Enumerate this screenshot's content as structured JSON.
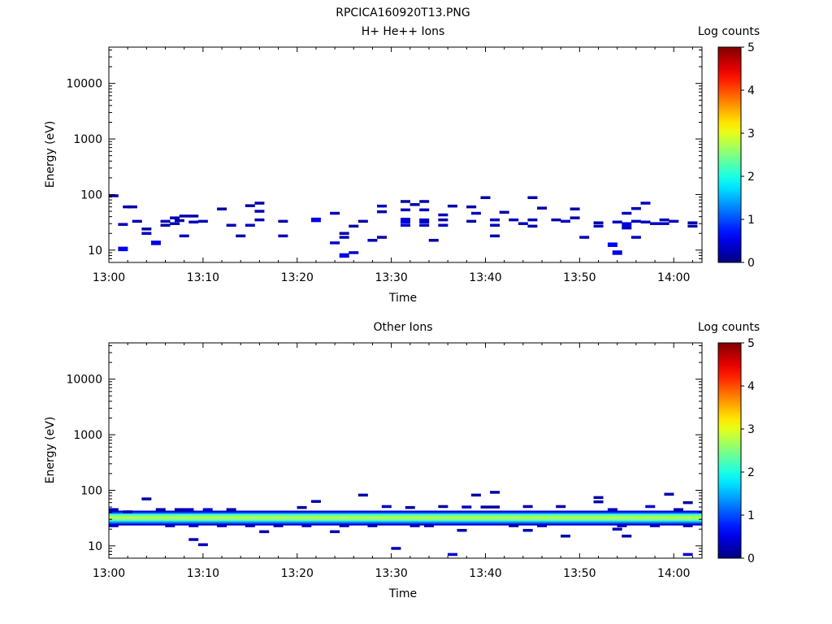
{
  "figure": {
    "title": "RPCICA160920T13.PNG"
  },
  "colorbar": {
    "label": "Log counts",
    "range": [
      0,
      5
    ],
    "ticks": [
      "0",
      "1",
      "2",
      "3",
      "4",
      "5"
    ],
    "colormap": "jet"
  },
  "chart_data": [
    {
      "type": "heatmap",
      "title": "H+ He++ Ions",
      "xlabel": "Time",
      "ylabel": "Energy (eV)",
      "y_scale": "log",
      "xlim": [
        "13:00",
        "14:03"
      ],
      "ylim": [
        6,
        45000
      ],
      "x_ticks": [
        "13:00",
        "13:10",
        "13:20",
        "13:30",
        "13:40",
        "13:50",
        "14:00"
      ],
      "y_ticks": [
        "10",
        "100",
        "1000",
        "10000"
      ],
      "colorbar_label": "Log counts",
      "value_range": [
        0,
        5
      ],
      "cells": [
        {
          "t": "13:00.5",
          "e": 95,
          "v": 0.2
        },
        {
          "t": "13:01.5",
          "e": 29,
          "v": 0.3
        },
        {
          "t": "13:02.0",
          "e": 60,
          "v": 0.2
        },
        {
          "t": "13:02.5",
          "e": 60,
          "v": 0.2
        },
        {
          "t": "13:01.5",
          "e": 10.5,
          "v": 0.6
        },
        {
          "t": "13:03.0",
          "e": 33,
          "v": 0.2
        },
        {
          "t": "13:04.0",
          "e": 24,
          "v": 0.2
        },
        {
          "t": "13:04.0",
          "e": 20,
          "v": 0.3
        },
        {
          "t": "13:05.0",
          "e": 13.5,
          "v": 0.5
        },
        {
          "t": "13:06.0",
          "e": 33,
          "v": 0.3
        },
        {
          "t": "13:06.0",
          "e": 28,
          "v": 0.2
        },
        {
          "t": "13:07.0",
          "e": 38,
          "v": 0.2
        },
        {
          "t": "13:07.0",
          "e": 30,
          "v": 0.3
        },
        {
          "t": "13:07.5",
          "e": 34,
          "v": 0.2
        },
        {
          "t": "13:08.0",
          "e": 41,
          "v": 0.2
        },
        {
          "t": "13:08.0",
          "e": 18,
          "v": 0.3
        },
        {
          "t": "13:09.0",
          "e": 41,
          "v": 0.2
        },
        {
          "t": "13:09.0",
          "e": 32,
          "v": 0.3
        },
        {
          "t": "13:10.0",
          "e": 33,
          "v": 0.3
        },
        {
          "t": "13:12.0",
          "e": 55,
          "v": 0.2
        },
        {
          "t": "13:13.0",
          "e": 28,
          "v": 0.3
        },
        {
          "t": "13:14.0",
          "e": 18,
          "v": 0.2
        },
        {
          "t": "13:15.0",
          "e": 63,
          "v": 0.2
        },
        {
          "t": "13:15.0",
          "e": 28,
          "v": 0.3
        },
        {
          "t": "13:16.0",
          "e": 70,
          "v": 0.2
        },
        {
          "t": "13:16.0",
          "e": 50,
          "v": 0.3
        },
        {
          "t": "13:16.0",
          "e": 35,
          "v": 0.3
        },
        {
          "t": "13:18.5",
          "e": 33,
          "v": 0.2
        },
        {
          "t": "13:18.5",
          "e": 18,
          "v": 0.3
        },
        {
          "t": "13:22.0",
          "e": 35,
          "v": 0.5
        },
        {
          "t": "13:24.0",
          "e": 46,
          "v": 0.3
        },
        {
          "t": "13:24.0",
          "e": 13.5,
          "v": 0.4
        },
        {
          "t": "13:25.0",
          "e": 20,
          "v": 0.2
        },
        {
          "t": "13:25.0",
          "e": 17,
          "v": 0.3
        },
        {
          "t": "13:25.0",
          "e": 8,
          "v": 0.5
        },
        {
          "t": "13:26.0",
          "e": 27,
          "v": 0.2
        },
        {
          "t": "13:26.0",
          "e": 9,
          "v": 0.4
        },
        {
          "t": "13:27.0",
          "e": 33,
          "v": 0.2
        },
        {
          "t": "13:28.0",
          "e": 15,
          "v": 0.3
        },
        {
          "t": "13:29.0",
          "e": 62,
          "v": 0.3
        },
        {
          "t": "13:29.0",
          "e": 49,
          "v": 0.2
        },
        {
          "t": "13:29.0",
          "e": 17,
          "v": 0.2
        },
        {
          "t": "13:31.5",
          "e": 75,
          "v": 0.2
        },
        {
          "t": "13:31.5",
          "e": 53,
          "v": 0.3
        },
        {
          "t": "13:31.5",
          "e": 36,
          "v": 0.4
        },
        {
          "t": "13:31.5",
          "e": 33,
          "v": 0.5
        },
        {
          "t": "13:31.5",
          "e": 28,
          "v": 0.4
        },
        {
          "t": "13:32.5",
          "e": 66,
          "v": 0.2
        },
        {
          "t": "13:33.5",
          "e": 75,
          "v": 0.2
        },
        {
          "t": "13:33.5",
          "e": 53,
          "v": 0.3
        },
        {
          "t": "13:33.5",
          "e": 35,
          "v": 0.3
        },
        {
          "t": "13:33.5",
          "e": 32,
          "v": 0.4
        },
        {
          "t": "13:33.5",
          "e": 28,
          "v": 0.3
        },
        {
          "t": "13:34.5",
          "e": 15,
          "v": 0.2
        },
        {
          "t": "13:35.5",
          "e": 43,
          "v": 0.3
        },
        {
          "t": "13:35.5",
          "e": 35,
          "v": 0.2
        },
        {
          "t": "13:35.5",
          "e": 28,
          "v": 0.3
        },
        {
          "t": "13:36.5",
          "e": 62,
          "v": 0.2
        },
        {
          "t": "13:38.5",
          "e": 33,
          "v": 0.2
        },
        {
          "t": "13:38.5",
          "e": 60,
          "v": 0.2
        },
        {
          "t": "13:39.0",
          "e": 46,
          "v": 0.3
        },
        {
          "t": "13:40.0",
          "e": 88,
          "v": 0.2
        },
        {
          "t": "13:41.0",
          "e": 35,
          "v": 0.3
        },
        {
          "t": "13:41.0",
          "e": 28,
          "v": 0.3
        },
        {
          "t": "13:41.0",
          "e": 18,
          "v": 0.2
        },
        {
          "t": "13:42.0",
          "e": 48,
          "v": 0.2
        },
        {
          "t": "13:43.0",
          "e": 35,
          "v": 0.3
        },
        {
          "t": "13:44.0",
          "e": 30,
          "v": 0.3
        },
        {
          "t": "13:45.0",
          "e": 88,
          "v": 0.2
        },
        {
          "t": "13:45.0",
          "e": 35,
          "v": 0.3
        },
        {
          "t": "13:45.0",
          "e": 27,
          "v": 0.2
        },
        {
          "t": "13:46.0",
          "e": 57,
          "v": 0.2
        },
        {
          "t": "13:47.5",
          "e": 35,
          "v": 0.2
        },
        {
          "t": "13:48.5",
          "e": 33,
          "v": 0.3
        },
        {
          "t": "13:49.5",
          "e": 55,
          "v": 0.2
        },
        {
          "t": "13:49.5",
          "e": 38,
          "v": 0.2
        },
        {
          "t": "13:50.5",
          "e": 17,
          "v": 0.3
        },
        {
          "t": "13:52.0",
          "e": 31,
          "v": 0.2
        },
        {
          "t": "13:52.0",
          "e": 27,
          "v": 0.3
        },
        {
          "t": "13:53.5",
          "e": 12.5,
          "v": 0.6
        },
        {
          "t": "13:54.0",
          "e": 32,
          "v": 0.3
        },
        {
          "t": "13:54.0",
          "e": 9,
          "v": 0.5
        },
        {
          "t": "13:55.0",
          "e": 46,
          "v": 0.3
        },
        {
          "t": "13:55.0",
          "e": 29,
          "v": 0.5
        },
        {
          "t": "13:55.0",
          "e": 25,
          "v": 0.3
        },
        {
          "t": "13:56.0",
          "e": 56,
          "v": 0.3
        },
        {
          "t": "13:56.0",
          "e": 33,
          "v": 0.3
        },
        {
          "t": "13:56.0",
          "e": 17,
          "v": 0.3
        },
        {
          "t": "13:57.0",
          "e": 70,
          "v": 0.3
        },
        {
          "t": "13:57.0",
          "e": 32,
          "v": 0.3
        },
        {
          "t": "13:58.0",
          "e": 30,
          "v": 0.3
        },
        {
          "t": "13:59.0",
          "e": 35,
          "v": 0.3
        },
        {
          "t": "13:59.0",
          "e": 30,
          "v": 0.3
        },
        {
          "t": "14:00.0",
          "e": 33,
          "v": 0.3
        },
        {
          "t": "14:02.0",
          "e": 31,
          "v": 0.2
        },
        {
          "t": "14:02.0",
          "e": 27,
          "v": 0.2
        }
      ]
    },
    {
      "type": "heatmap",
      "title": "Other Ions",
      "xlabel": "Time",
      "ylabel": "Energy (eV)",
      "y_scale": "log",
      "xlim": [
        "13:00",
        "14:03"
      ],
      "ylim": [
        6,
        45000
      ],
      "x_ticks": [
        "13:00",
        "13:10",
        "13:20",
        "13:30",
        "13:40",
        "13:50",
        "14:00"
      ],
      "y_ticks": [
        "10",
        "100",
        "1000",
        "10000"
      ],
      "colorbar_label": "Log counts",
      "value_range": [
        0,
        5
      ],
      "band": {
        "t_start": "13:00",
        "t_end": "14:03",
        "profile": [
          {
            "e": 41,
            "v": 0.4
          },
          {
            "e": 39,
            "v": 1.0
          },
          {
            "e": 37,
            "v": 1.8
          },
          {
            "e": 35,
            "v": 2.4
          },
          {
            "e": 33,
            "v": 2.8
          },
          {
            "e": 31,
            "v": 2.7
          },
          {
            "e": 29,
            "v": 2.3
          },
          {
            "e": 27.5,
            "v": 1.7
          },
          {
            "e": 26,
            "v": 1.1
          },
          {
            "e": 24.5,
            "v": 0.4
          }
        ]
      },
      "cells": [
        {
          "t": "13:00.5",
          "e": 45,
          "v": 0.2
        },
        {
          "t": "13:00.5",
          "e": 23,
          "v": 0.4
        },
        {
          "t": "13:02.0",
          "e": 41,
          "v": 0.3
        },
        {
          "t": "13:04.0",
          "e": 70,
          "v": 0.2
        },
        {
          "t": "13:05.5",
          "e": 45,
          "v": 0.2
        },
        {
          "t": "13:07.5",
          "e": 45,
          "v": 0.2
        },
        {
          "t": "13:06.5",
          "e": 23,
          "v": 0.3
        },
        {
          "t": "13:08.5",
          "e": 45,
          "v": 0.3
        },
        {
          "t": "13:09.0",
          "e": 23,
          "v": 0.4
        },
        {
          "t": "13:09.0",
          "e": 13,
          "v": 0.3
        },
        {
          "t": "13:10.0",
          "e": 10.5,
          "v": 0.3
        },
        {
          "t": "13:10.5",
          "e": 45,
          "v": 0.4
        },
        {
          "t": "13:12.0",
          "e": 23,
          "v": 0.3
        },
        {
          "t": "13:13.0",
          "e": 45,
          "v": 0.2
        },
        {
          "t": "13:15.0",
          "e": 23,
          "v": 0.3
        },
        {
          "t": "13:16.5",
          "e": 18,
          "v": 0.2
        },
        {
          "t": "13:18.0",
          "e": 23,
          "v": 0.3
        },
        {
          "t": "13:20.5",
          "e": 49,
          "v": 0.2
        },
        {
          "t": "13:22.0",
          "e": 63,
          "v": 0.2
        },
        {
          "t": "13:21.0",
          "e": 23,
          "v": 0.3
        },
        {
          "t": "13:24.0",
          "e": 18,
          "v": 0.2
        },
        {
          "t": "13:25.0",
          "e": 23,
          "v": 0.3
        },
        {
          "t": "13:27.0",
          "e": 82,
          "v": 0.2
        },
        {
          "t": "13:28.0",
          "e": 23,
          "v": 0.3
        },
        {
          "t": "13:29.5",
          "e": 51,
          "v": 0.3
        },
        {
          "t": "13:30.5",
          "e": 9,
          "v": 0.3
        },
        {
          "t": "13:32.0",
          "e": 49,
          "v": 0.2
        },
        {
          "t": "13:32.5",
          "e": 23,
          "v": 0.3
        },
        {
          "t": "13:34.0",
          "e": 23,
          "v": 0.3
        },
        {
          "t": "13:35.5",
          "e": 51,
          "v": 0.2
        },
        {
          "t": "13:36.5",
          "e": 7,
          "v": 0.4
        },
        {
          "t": "13:38.0",
          "e": 50,
          "v": 0.3
        },
        {
          "t": "13:37.5",
          "e": 19,
          "v": 0.2
        },
        {
          "t": "13:39.0",
          "e": 82,
          "v": 0.2
        },
        {
          "t": "13:40.0",
          "e": 50,
          "v": 0.2
        },
        {
          "t": "13:41.0",
          "e": 50,
          "v": 0.2
        },
        {
          "t": "13:41.0",
          "e": 92,
          "v": 0.2
        },
        {
          "t": "13:43.0",
          "e": 23,
          "v": 0.2
        },
        {
          "t": "13:44.5",
          "e": 51,
          "v": 0.2
        },
        {
          "t": "13:44.5",
          "e": 19,
          "v": 0.3
        },
        {
          "t": "13:46.0",
          "e": 23,
          "v": 0.3
        },
        {
          "t": "13:48.0",
          "e": 51,
          "v": 0.2
        },
        {
          "t": "13:48.5",
          "e": 15,
          "v": 0.2
        },
        {
          "t": "13:52.0",
          "e": 74,
          "v": 0.2
        },
        {
          "t": "13:52.0",
          "e": 62,
          "v": 0.2
        },
        {
          "t": "13:53.5",
          "e": 45,
          "v": 0.3
        },
        {
          "t": "13:54.5",
          "e": 23,
          "v": 0.3
        },
        {
          "t": "13:54.0",
          "e": 20,
          "v": 0.3
        },
        {
          "t": "13:55.0",
          "e": 15,
          "v": 0.2
        },
        {
          "t": "13:57.5",
          "e": 51,
          "v": 0.4
        },
        {
          "t": "13:58.0",
          "e": 23,
          "v": 0.3
        },
        {
          "t": "13:59.5",
          "e": 85,
          "v": 0.2
        },
        {
          "t": "14:00.5",
          "e": 45,
          "v": 0.2
        },
        {
          "t": "14:01.5",
          "e": 60,
          "v": 0.2
        },
        {
          "t": "14:01.5",
          "e": 23,
          "v": 0.3
        },
        {
          "t": "14:01.5",
          "e": 7,
          "v": 0.4
        }
      ]
    }
  ]
}
